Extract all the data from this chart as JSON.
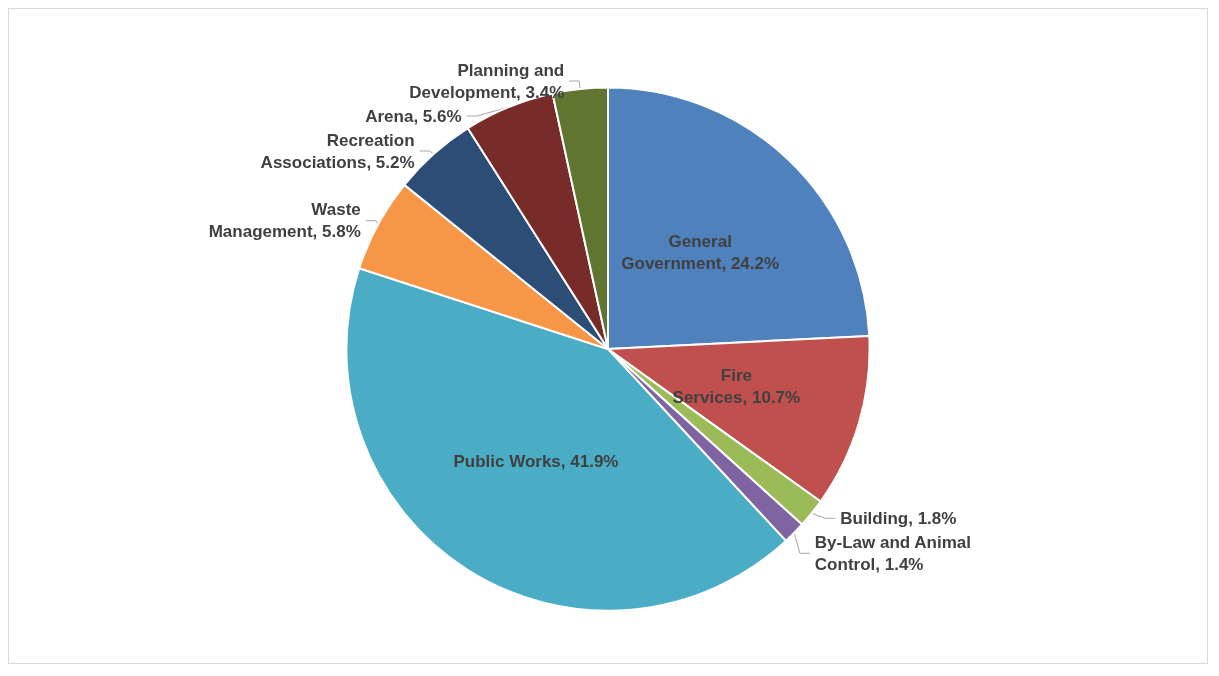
{
  "chart_data": {
    "type": "pie",
    "categories": [
      "General Government",
      "Fire Services",
      "Building",
      "By-Law and Animal Control",
      "Public Works",
      "Waste Management",
      "Recreation Associations",
      "Arena",
      "Planning and Development"
    ],
    "values": [
      24.2,
      10.7,
      1.8,
      1.4,
      41.9,
      5.8,
      5.2,
      5.6,
      3.4
    ],
    "colors": [
      "#4f81bd",
      "#c0504d",
      "#9bbb59",
      "#8064a2",
      "#4bacc6",
      "#f79646",
      "#2c4d75",
      "#772c2a",
      "#5f7530"
    ],
    "value_labels": [
      "24.2%",
      "10.7%",
      "1.8%",
      "1.4%",
      "41.9%",
      "5.8%",
      "5.2%",
      "5.6%",
      "3.4%"
    ],
    "legend": false
  }
}
